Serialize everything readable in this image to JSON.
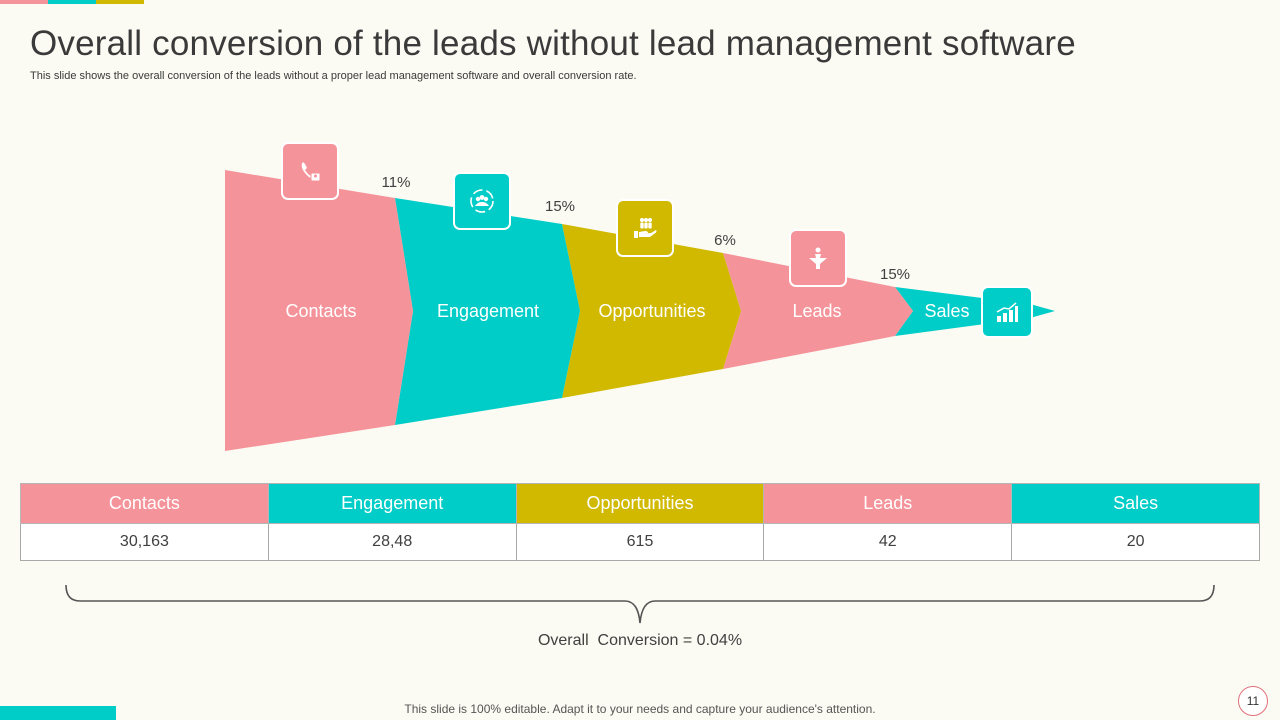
{
  "colors": {
    "pink": "#f5939a",
    "teal": "#00cdc8",
    "olive": "#d1b900",
    "background": "#fbfbf3"
  },
  "header": {
    "title": "Overall conversion of the leads without lead management software",
    "subtitle": "This slide shows the overall conversion of the leads without a proper lead management software and overall conversion rate."
  },
  "funnel": {
    "stages": [
      {
        "label": "Contacts",
        "icon": "phone-contact-icon"
      },
      {
        "label": "Engagement",
        "icon": "team-engagement-icon"
      },
      {
        "label": "Opportunities",
        "icon": "hand-people-icon"
      },
      {
        "label": "Leads",
        "icon": "funnel-person-icon"
      },
      {
        "label": "Sales",
        "icon": "bar-chart-icon"
      }
    ],
    "conversion_rates": [
      "11%",
      "15%",
      "6%",
      "15%"
    ]
  },
  "table": {
    "headers": [
      "Contacts",
      "Engagement",
      "Opportunities",
      "Leads",
      "Sales"
    ],
    "values": [
      "30,163",
      "28,48",
      "615",
      "42",
      "20"
    ]
  },
  "overall_conversion": "Overall  Conversion = 0.04%",
  "footer": {
    "note": "This slide is 100% editable. Adapt it to your needs and capture your audience's attention.",
    "page_number": "11"
  }
}
